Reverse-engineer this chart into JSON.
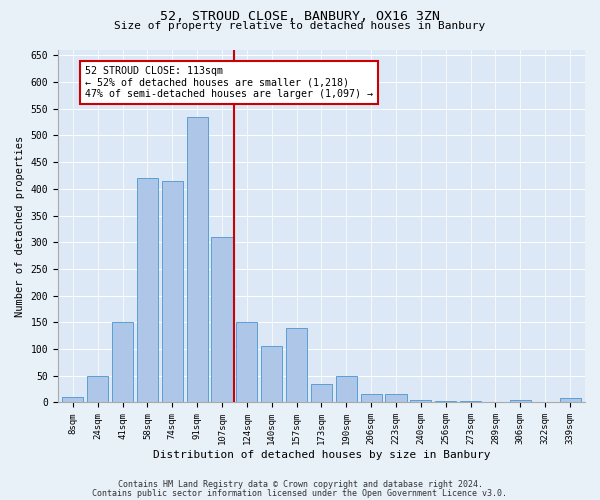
{
  "title1": "52, STROUD CLOSE, BANBURY, OX16 3ZN",
  "title2": "Size of property relative to detached houses in Banbury",
  "xlabel": "Distribution of detached houses by size in Banbury",
  "ylabel": "Number of detached properties",
  "categories": [
    "8sqm",
    "24sqm",
    "41sqm",
    "58sqm",
    "74sqm",
    "91sqm",
    "107sqm",
    "124sqm",
    "140sqm",
    "157sqm",
    "173sqm",
    "190sqm",
    "206sqm",
    "223sqm",
    "240sqm",
    "256sqm",
    "273sqm",
    "289sqm",
    "306sqm",
    "322sqm",
    "339sqm"
  ],
  "values": [
    10,
    50,
    150,
    420,
    415,
    535,
    310,
    150,
    105,
    140,
    35,
    50,
    15,
    15,
    5,
    3,
    2,
    1,
    5,
    1,
    8
  ],
  "bar_color": "#aec6e8",
  "bar_edge_color": "#5a9fd4",
  "vline_x_index": 6.5,
  "vline_color": "#cc0000",
  "annotation_text": "52 STROUD CLOSE: 113sqm\n← 52% of detached houses are smaller (1,218)\n47% of semi-detached houses are larger (1,097) →",
  "annotation_box_color": "#ffffff",
  "annotation_box_edge": "#cc0000",
  "footnote1": "Contains HM Land Registry data © Crown copyright and database right 2024.",
  "footnote2": "Contains public sector information licensed under the Open Government Licence v3.0.",
  "bg_color": "#e8f0f8",
  "plot_bg_color": "#dce8f5",
  "ylim": [
    0,
    660
  ],
  "yticks": [
    0,
    50,
    100,
    150,
    200,
    250,
    300,
    350,
    400,
    450,
    500,
    550,
    600,
    650
  ]
}
